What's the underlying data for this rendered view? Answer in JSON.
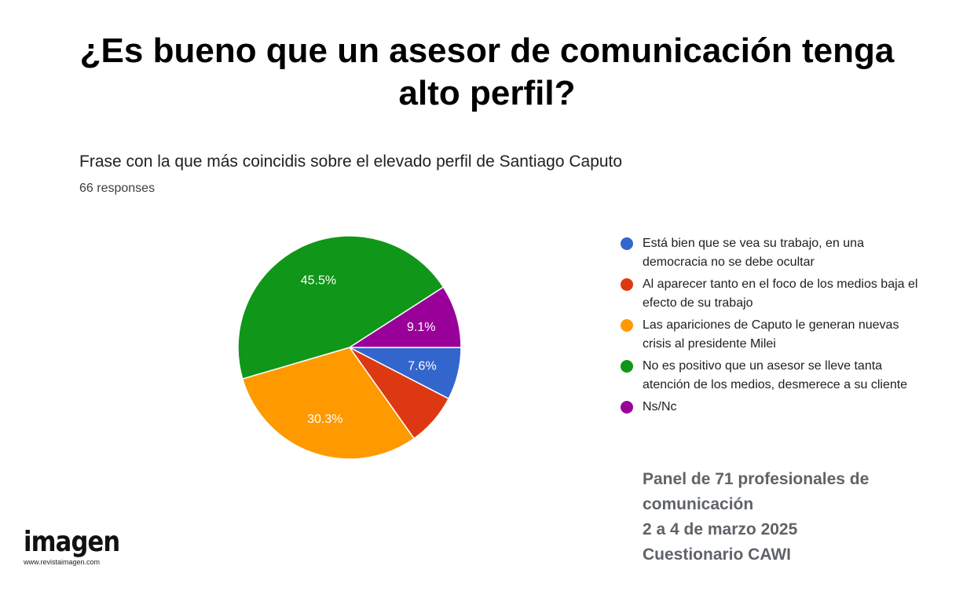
{
  "header": {
    "title": "¿Es bueno que un asesor de comunicación tenga alto perfil?"
  },
  "survey": {
    "question": "Frase con la que más coincidis sobre el elevado perfil de Santiago Caputo",
    "responses": "66 responses"
  },
  "chart_data": {
    "type": "pie",
    "title": "Frase con la que más coincidis sobre el elevado perfil de Santiago Caputo",
    "legend_position": "right",
    "slices": [
      {
        "label": "Está bien que se vea su trabajo, en una democracia no se debe ocultar",
        "value": 7.6,
        "display": "7.6%",
        "color": "#3366cc"
      },
      {
        "label": "Al aparecer tanto en el foco de los medios baja el efecto de su trabajo",
        "value": 7.6,
        "display": "",
        "color": "#dc3912"
      },
      {
        "label": "Las apariciones de Caputo le generan nuevas crisis al presidente Milei",
        "value": 30.3,
        "display": "30.3%",
        "color": "#ff9900"
      },
      {
        "label": "No es positivo que un asesor se lleve tanta atención de los medios, desmerece a su cliente",
        "value": 45.5,
        "display": "45.5%",
        "color": "#109618"
      },
      {
        "label": "Ns/Nc",
        "value": 9.1,
        "display": "9.1%",
        "color": "#990099"
      }
    ]
  },
  "legend": {
    "items": [
      {
        "label": "Está bien que se vea su trabajo, en una democracia no se debe ocultar",
        "color": "#3366cc"
      },
      {
        "label": "Al aparecer tanto en el foco de los medios baja el efecto de su trabajo",
        "color": "#dc3912"
      },
      {
        "label": "Las apariciones de Caputo le generan nuevas crisis al presidente Milei",
        "color": "#ff9900"
      },
      {
        "label": "No es positivo que un asesor se lleve tanta atención de los medios, desmerece a su cliente",
        "color": "#109618"
      },
      {
        "label": "Ns/Nc",
        "color": "#990099"
      }
    ]
  },
  "panel": {
    "line1": "Panel de 71 profesionales de",
    "line2": "comunicación",
    "line3": "2 a 4 de marzo 2025",
    "line4": "Cuestionario CAWI"
  },
  "logo": {
    "name": "imagen",
    "url": "www.revistaimagen.com"
  }
}
